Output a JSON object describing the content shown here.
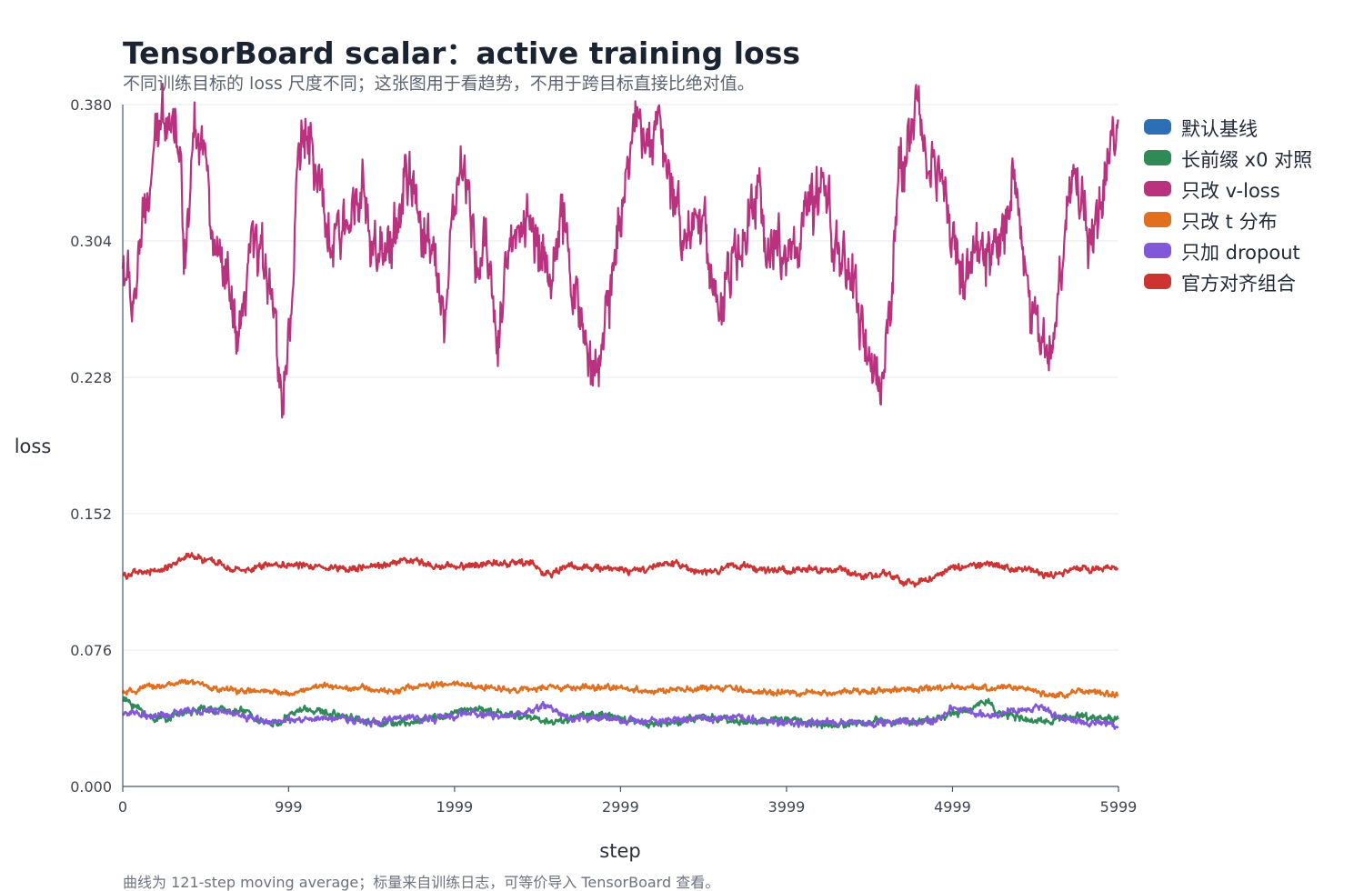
{
  "chart_data": {
    "type": "line",
    "title": "TensorBoard scalar：active training loss",
    "subtitle": "不同训练目标的 loss 尺度不同；这张图用于看趋势，不用于跨目标直接比绝对值。",
    "footnote": "曲线为 121-step moving average；标量来自训练日志，可等价导入 TensorBoard 查看。",
    "xlabel": "step",
    "ylabel": "loss",
    "xlim": [
      0,
      5999
    ],
    "ylim": [
      0,
      0.38
    ],
    "x_ticks": [
      "0",
      "999",
      "1999",
      "2999",
      "3999",
      "4999",
      "5999"
    ],
    "y_ticks": [
      "0.000",
      "0.076",
      "0.152",
      "0.228",
      "0.304",
      "0.380"
    ],
    "grid": true,
    "legend_position": "right",
    "series": [
      {
        "name": "默认基线",
        "color": "#2c6fb5",
        "anchors": [],
        "noise": 0
      },
      {
        "name": "长前缀 x0 对照",
        "color": "#2e8b57",
        "anchors": [
          [
            0,
            0.048
          ],
          [
            200,
            0.038
          ],
          [
            500,
            0.043
          ],
          [
            700,
            0.042
          ],
          [
            900,
            0.035
          ],
          [
            1100,
            0.043
          ],
          [
            1300,
            0.04
          ],
          [
            1500,
            0.036
          ],
          [
            1700,
            0.035
          ],
          [
            1900,
            0.039
          ],
          [
            2100,
            0.043
          ],
          [
            2400,
            0.039
          ],
          [
            2600,
            0.036
          ],
          [
            2800,
            0.04
          ],
          [
            3000,
            0.038
          ],
          [
            3200,
            0.035
          ],
          [
            3500,
            0.038
          ],
          [
            3800,
            0.036
          ],
          [
            4000,
            0.037
          ],
          [
            4300,
            0.034
          ],
          [
            4600,
            0.037
          ],
          [
            4800,
            0.036
          ],
          [
            5000,
            0.04
          ],
          [
            5100,
            0.043
          ],
          [
            5200,
            0.048
          ],
          [
            5300,
            0.04
          ],
          [
            5500,
            0.036
          ],
          [
            5700,
            0.039
          ],
          [
            5999,
            0.038
          ]
        ],
        "noise": 0.0015
      },
      {
        "name": "只改 v-loss",
        "color": "#b83280",
        "anchors": [
          [
            0,
            0.29
          ],
          [
            60,
            0.27
          ],
          [
            120,
            0.31
          ],
          [
            200,
            0.355
          ],
          [
            250,
            0.38
          ],
          [
            320,
            0.37
          ],
          [
            380,
            0.3
          ],
          [
            430,
            0.375
          ],
          [
            480,
            0.36
          ],
          [
            550,
            0.3
          ],
          [
            620,
            0.28
          ],
          [
            700,
            0.245
          ],
          [
            780,
            0.3
          ],
          [
            880,
            0.29
          ],
          [
            960,
            0.22
          ],
          [
            1010,
            0.26
          ],
          [
            1060,
            0.35
          ],
          [
            1110,
            0.37
          ],
          [
            1180,
            0.33
          ],
          [
            1260,
            0.3
          ],
          [
            1340,
            0.31
          ],
          [
            1430,
            0.34
          ],
          [
            1500,
            0.3
          ],
          [
            1560,
            0.29
          ],
          [
            1640,
            0.31
          ],
          [
            1720,
            0.34
          ],
          [
            1800,
            0.31
          ],
          [
            1880,
            0.3
          ],
          [
            1940,
            0.26
          ],
          [
            2000,
            0.33
          ],
          [
            2060,
            0.34
          ],
          [
            2130,
            0.29
          ],
          [
            2200,
            0.3
          ],
          [
            2260,
            0.25
          ],
          [
            2330,
            0.3
          ],
          [
            2420,
            0.32
          ],
          [
            2500,
            0.3
          ],
          [
            2580,
            0.29
          ],
          [
            2650,
            0.31
          ],
          [
            2720,
            0.28
          ],
          [
            2800,
            0.24
          ],
          [
            2870,
            0.23
          ],
          [
            2920,
            0.27
          ],
          [
            3000,
            0.32
          ],
          [
            3040,
            0.35
          ],
          [
            3080,
            0.37
          ],
          [
            3150,
            0.36
          ],
          [
            3220,
            0.37
          ],
          [
            3300,
            0.33
          ],
          [
            3400,
            0.31
          ],
          [
            3480,
            0.32
          ],
          [
            3550,
            0.29
          ],
          [
            3600,
            0.26
          ],
          [
            3660,
            0.29
          ],
          [
            3740,
            0.3
          ],
          [
            3820,
            0.33
          ],
          [
            3900,
            0.3
          ],
          [
            3970,
            0.3
          ],
          [
            4050,
            0.3
          ],
          [
            4140,
            0.32
          ],
          [
            4230,
            0.33
          ],
          [
            4300,
            0.3
          ],
          [
            4400,
            0.28
          ],
          [
            4460,
            0.25
          ],
          [
            4520,
            0.23
          ],
          [
            4560,
            0.22
          ],
          [
            4620,
            0.27
          ],
          [
            4680,
            0.34
          ],
          [
            4740,
            0.36
          ],
          [
            4780,
            0.38
          ],
          [
            4850,
            0.35
          ],
          [
            4930,
            0.34
          ],
          [
            5000,
            0.31
          ],
          [
            5070,
            0.28
          ],
          [
            5140,
            0.3
          ],
          [
            5220,
            0.29
          ],
          [
            5300,
            0.31
          ],
          [
            5370,
            0.34
          ],
          [
            5430,
            0.3
          ],
          [
            5480,
            0.26
          ],
          [
            5540,
            0.25
          ],
          [
            5600,
            0.24
          ],
          [
            5660,
            0.3
          ],
          [
            5720,
            0.34
          ],
          [
            5780,
            0.33
          ],
          [
            5840,
            0.3
          ],
          [
            5900,
            0.33
          ],
          [
            5960,
            0.37
          ],
          [
            5999,
            0.36
          ]
        ],
        "noise": 0.012
      },
      {
        "name": "只改 t 分布",
        "color": "#e07020",
        "anchors": [
          [
            0,
            0.052
          ],
          [
            200,
            0.056
          ],
          [
            400,
            0.058
          ],
          [
            600,
            0.054
          ],
          [
            800,
            0.053
          ],
          [
            1000,
            0.052
          ],
          [
            1200,
            0.056
          ],
          [
            1400,
            0.055
          ],
          [
            1600,
            0.053
          ],
          [
            1800,
            0.056
          ],
          [
            2000,
            0.057
          ],
          [
            2200,
            0.055
          ],
          [
            2400,
            0.054
          ],
          [
            2600,
            0.055
          ],
          [
            2800,
            0.055
          ],
          [
            3000,
            0.055
          ],
          [
            3200,
            0.053
          ],
          [
            3400,
            0.054
          ],
          [
            3600,
            0.055
          ],
          [
            3800,
            0.053
          ],
          [
            4000,
            0.052
          ],
          [
            4200,
            0.052
          ],
          [
            4400,
            0.053
          ],
          [
            4600,
            0.054
          ],
          [
            4800,
            0.054
          ],
          [
            5000,
            0.055
          ],
          [
            5200,
            0.055
          ],
          [
            5400,
            0.055
          ],
          [
            5600,
            0.051
          ],
          [
            5800,
            0.053
          ],
          [
            5999,
            0.051
          ]
        ],
        "noise": 0.0012
      },
      {
        "name": "只加 dropout",
        "color": "#8257d8",
        "anchors": [
          [
            0,
            0.041
          ],
          [
            200,
            0.039
          ],
          [
            400,
            0.042
          ],
          [
            600,
            0.042
          ],
          [
            800,
            0.038
          ],
          [
            900,
            0.036
          ],
          [
            1100,
            0.037
          ],
          [
            1300,
            0.038
          ],
          [
            1500,
            0.036
          ],
          [
            1700,
            0.038
          ],
          [
            1900,
            0.038
          ],
          [
            2100,
            0.041
          ],
          [
            2300,
            0.039
          ],
          [
            2450,
            0.042
          ],
          [
            2550,
            0.045
          ],
          [
            2700,
            0.038
          ],
          [
            2900,
            0.038
          ],
          [
            3100,
            0.036
          ],
          [
            3300,
            0.037
          ],
          [
            3500,
            0.038
          ],
          [
            3700,
            0.039
          ],
          [
            3900,
            0.036
          ],
          [
            4100,
            0.035
          ],
          [
            4300,
            0.036
          ],
          [
            4500,
            0.035
          ],
          [
            4700,
            0.036
          ],
          [
            4900,
            0.037
          ],
          [
            5000,
            0.043
          ],
          [
            5200,
            0.04
          ],
          [
            5400,
            0.043
          ],
          [
            5500,
            0.044
          ],
          [
            5700,
            0.037
          ],
          [
            5900,
            0.035
          ],
          [
            5999,
            0.034
          ]
        ],
        "noise": 0.0015
      },
      {
        "name": "官方对齐组合",
        "color": "#cc3333",
        "anchors": [
          [
            0,
            0.118
          ],
          [
            200,
            0.12
          ],
          [
            400,
            0.128
          ],
          [
            550,
            0.125
          ],
          [
            700,
            0.12
          ],
          [
            900,
            0.124
          ],
          [
            1100,
            0.123
          ],
          [
            1300,
            0.122
          ],
          [
            1500,
            0.122
          ],
          [
            1700,
            0.126
          ],
          [
            1900,
            0.123
          ],
          [
            2100,
            0.123
          ],
          [
            2300,
            0.125
          ],
          [
            2450,
            0.125
          ],
          [
            2550,
            0.118
          ],
          [
            2700,
            0.123
          ],
          [
            2900,
            0.122
          ],
          [
            3100,
            0.12
          ],
          [
            3300,
            0.124
          ],
          [
            3500,
            0.119
          ],
          [
            3700,
            0.123
          ],
          [
            3900,
            0.121
          ],
          [
            4100,
            0.12
          ],
          [
            4300,
            0.121
          ],
          [
            4500,
            0.117
          ],
          [
            4600,
            0.118
          ],
          [
            4750,
            0.113
          ],
          [
            4900,
            0.117
          ],
          [
            5000,
            0.122
          ],
          [
            5200,
            0.124
          ],
          [
            5400,
            0.121
          ],
          [
            5600,
            0.118
          ],
          [
            5800,
            0.121
          ],
          [
            5999,
            0.122
          ]
        ],
        "noise": 0.0014
      }
    ]
  }
}
